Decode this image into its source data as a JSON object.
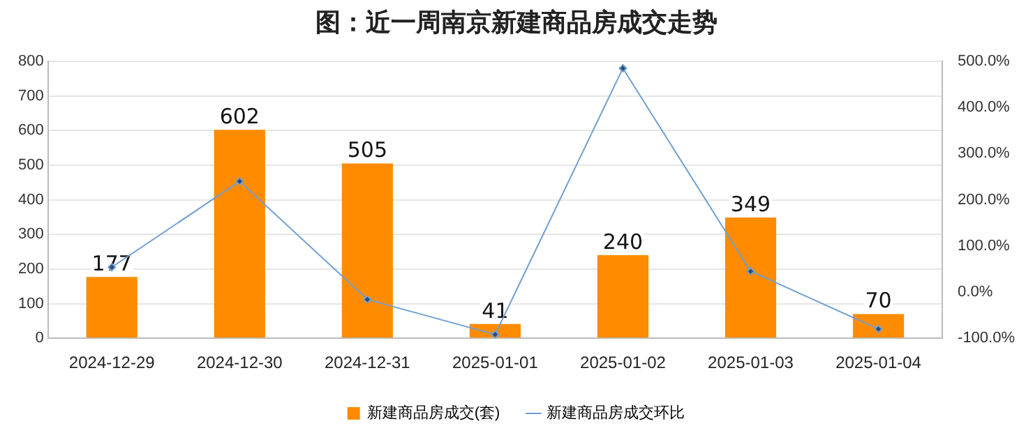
{
  "chart_data": {
    "type": "bar",
    "title": "图：近一周南京新建商品房成交走势",
    "categories": [
      "2024-12-29",
      "2024-12-30",
      "2024-12-31",
      "2025-01-01",
      "2025-01-02",
      "2025-01-03",
      "2025-01-04"
    ],
    "series": [
      {
        "name": "新建商品房成交(套)",
        "color": "#ff8c00",
        "values": [
          177,
          602,
          505,
          41,
          240,
          349,
          70
        ],
        "value_labels": [
          "177",
          "602",
          "505",
          "41",
          "240",
          "349",
          "70"
        ]
      },
      {
        "name": "新建商品房成交环比",
        "type": "line",
        "axis": "y2",
        "color": "#6f9fd0",
        "marker": "diamond",
        "values": [
          54,
          240,
          -16,
          -92,
          485,
          45,
          -80
        ]
      }
    ],
    "ylim": [
      0,
      800
    ],
    "yticks": [
      0,
      100,
      200,
      300,
      400,
      500,
      600,
      700,
      800
    ],
    "y2lim": [
      -100,
      500
    ],
    "y2ticks": [
      {
        "value": -100,
        "label": "-100.0%"
      },
      {
        "value": 0,
        "label": "0.0%"
      },
      {
        "value": 100,
        "label": "100.0%"
      },
      {
        "value": 200,
        "label": "200.0%"
      },
      {
        "value": 300,
        "label": "300.0%"
      },
      {
        "value": 400,
        "label": "400.0%"
      },
      {
        "value": 500,
        "label": "500.0%"
      }
    ],
    "grid": "y",
    "legend": "bottom"
  }
}
